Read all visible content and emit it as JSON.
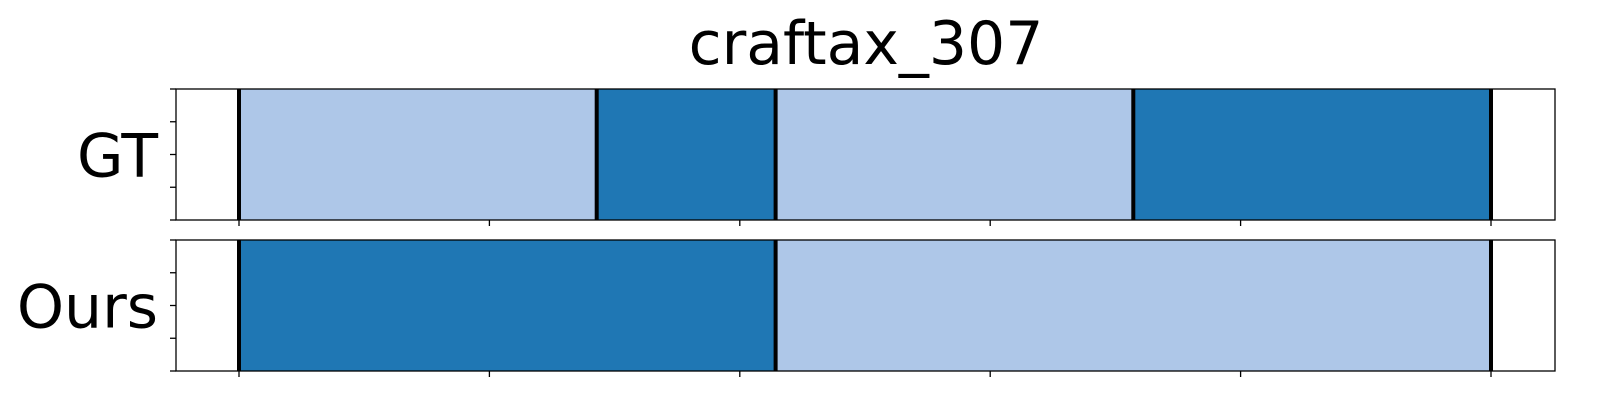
{
  "chart_data": {
    "type": "segment-timeline",
    "title": "craftax_307",
    "colors": {
      "light": "#aec7e8",
      "dark": "#1f77b4",
      "boundary": "#000000"
    },
    "xlim": [
      0,
      1
    ],
    "rows": [
      {
        "label": "GT",
        "segments": [
          {
            "start": 0.0,
            "end": 0.2857,
            "class": "light"
          },
          {
            "start": 0.2857,
            "end": 0.4286,
            "class": "dark"
          },
          {
            "start": 0.4286,
            "end": 0.7143,
            "class": "light"
          },
          {
            "start": 0.7143,
            "end": 1.0,
            "class": "dark"
          }
        ]
      },
      {
        "label": "Ours",
        "segments": [
          {
            "start": 0.0,
            "end": 0.4286,
            "class": "dark"
          },
          {
            "start": 0.4286,
            "end": 1.0,
            "class": "light"
          }
        ]
      }
    ]
  }
}
